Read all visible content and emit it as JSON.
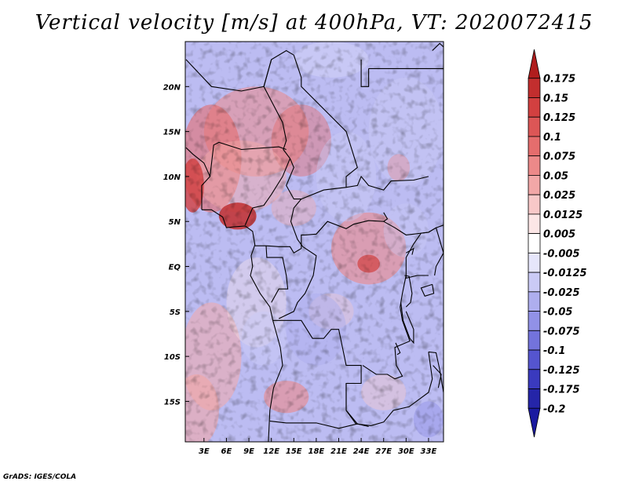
{
  "title": "Vertical velocity [m/s] at 400hPa, VT: 2020072415",
  "credit": "GrADS: IGES/COLA",
  "map": {
    "lat_labels": [
      "20N",
      "15N",
      "10N",
      "5N",
      "EQ",
      "5S",
      "10S",
      "15S"
    ],
    "lat_values": [
      20,
      15,
      10,
      5,
      0,
      -5,
      -10,
      -15
    ],
    "lon_labels": [
      "3E",
      "6E",
      "9E",
      "12E",
      "15E",
      "18E",
      "21E",
      "24E",
      "27E",
      "30E",
      "33E"
    ],
    "lon_values": [
      3,
      6,
      9,
      12,
      15,
      18,
      21,
      24,
      27,
      30,
      33
    ],
    "lon_range": [
      0.5,
      35
    ],
    "lat_range": [
      -19.5,
      25
    ]
  },
  "colorbar": {
    "labels": [
      "0.175",
      "0.15",
      "0.125",
      "0.1",
      "0.075",
      "0.05",
      "0.025",
      "0.0125",
      "0.005",
      "-0.005",
      "-0.0125",
      "-0.025",
      "-0.05",
      "-0.075",
      "-0.1",
      "-0.125",
      "-0.175",
      "-0.2"
    ],
    "colors": [
      "#b01d1d",
      "#c22e2e",
      "#d24040",
      "#dc5656",
      "#e56d6d",
      "#ec8989",
      "#f2a7a7",
      "#f8c8c8",
      "#fce6e6",
      "#ffffff",
      "#e6e6fb",
      "#cacaf5",
      "#aeaeee",
      "#9191e7",
      "#7373dc",
      "#5555cf",
      "#3a3abe",
      "#2525a8",
      "#1a1aa0"
    ]
  }
}
